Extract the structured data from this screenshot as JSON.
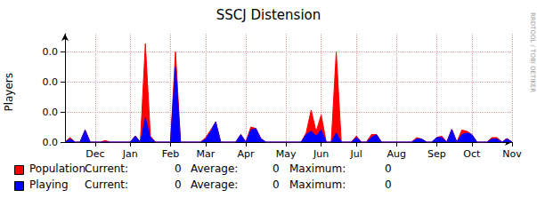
{
  "chart_data": {
    "type": "area",
    "title": "SSCJ Distension",
    "y_label": "Players",
    "annotation": "RRDTOOL / TOBI OETIKER",
    "stat_labels": [
      "Current:",
      "Average:",
      "Maximum:"
    ],
    "categories": [
      null,
      null,
      null,
      null,
      null,
      null,
      "Dec",
      null,
      null,
      null,
      null,
      null,
      null,
      "Jan",
      null,
      null,
      null,
      null,
      null,
      null,
      null,
      "Feb",
      null,
      null,
      null,
      null,
      null,
      null,
      "Mar",
      null,
      null,
      null,
      null,
      null,
      null,
      null,
      "Apr",
      null,
      null,
      null,
      null,
      null,
      null,
      null,
      "May",
      null,
      null,
      null,
      null,
      null,
      null,
      "Jun",
      null,
      null,
      null,
      null,
      null,
      null,
      "Jul",
      null,
      null,
      null,
      null,
      null,
      null,
      null,
      "Aug",
      null,
      null,
      null,
      null,
      null,
      null,
      null,
      "Sep",
      null,
      null,
      null,
      null,
      null,
      null,
      "Oct",
      null,
      null,
      null,
      null,
      null,
      null,
      null,
      "Nov"
    ],
    "series": [
      {
        "name": "Population",
        "color": "#ff0000",
        "current": 0,
        "average": 0,
        "maximum": 0,
        "values": [
          0,
          0.0015,
          0,
          0,
          0.004,
          0,
          0,
          0,
          0.0005,
          0,
          0,
          0,
          0,
          0,
          0.002,
          0,
          0.0327,
          0.002,
          0,
          0,
          0,
          0,
          0.03,
          0,
          0,
          0,
          0,
          0,
          0.0015,
          0.004,
          0.0067,
          0,
          0,
          0,
          0,
          0.0025,
          0,
          0.005,
          0.0045,
          0.0012,
          0,
          0,
          0,
          0,
          0,
          0,
          0,
          0,
          0.003,
          0.0106,
          0.0035,
          0.009,
          0,
          0,
          0.03,
          0,
          0,
          0,
          0.002,
          0,
          0,
          0.0025,
          0.0025,
          0,
          0,
          0,
          0,
          0,
          0,
          0,
          0.0015,
          0.001,
          0,
          0,
          0.0015,
          0.002,
          0,
          0.0042,
          0,
          0.004,
          0.0036,
          0.0025,
          0,
          0,
          0,
          0.0015,
          0.0015,
          0,
          0.0012,
          0
        ]
      },
      {
        "name": "Playing",
        "color": "#0000ff",
        "current": 0,
        "average": 0,
        "maximum": 0,
        "values": [
          0,
          0.001,
          0,
          0,
          0.004,
          0,
          0,
          0,
          0,
          0,
          0,
          0,
          0,
          0,
          0.002,
          0,
          0.008,
          0.0015,
          0,
          0,
          0,
          0,
          0.025,
          0,
          0,
          0,
          0,
          0,
          0.001,
          0.0035,
          0.0067,
          0,
          0,
          0,
          0,
          0.0025,
          0,
          0.004,
          0.0045,
          0.001,
          0,
          0,
          0,
          0,
          0,
          0,
          0,
          0,
          0.0025,
          0.0036,
          0.002,
          0.004,
          0,
          0,
          0.003,
          0,
          0,
          0,
          0.0015,
          0,
          0,
          0.0015,
          0.0025,
          0,
          0,
          0,
          0,
          0,
          0,
          0,
          0.001,
          0.001,
          0,
          0,
          0.0015,
          0.0015,
          0,
          0.0042,
          0,
          0.0025,
          0.003,
          0.0025,
          0,
          0,
          0,
          0.001,
          0.001,
          0,
          0.001,
          0
        ]
      }
    ],
    "ylim": [
      0,
      0.036
    ],
    "yticks": [
      {
        "value": 0,
        "label": "0.0"
      },
      {
        "value": 0.01,
        "label": "0.0"
      },
      {
        "value": 0.02,
        "label": "0.0"
      },
      {
        "value": 0.03,
        "label": "0.0"
      }
    ],
    "grid": true,
    "legend": "bottom-left"
  }
}
